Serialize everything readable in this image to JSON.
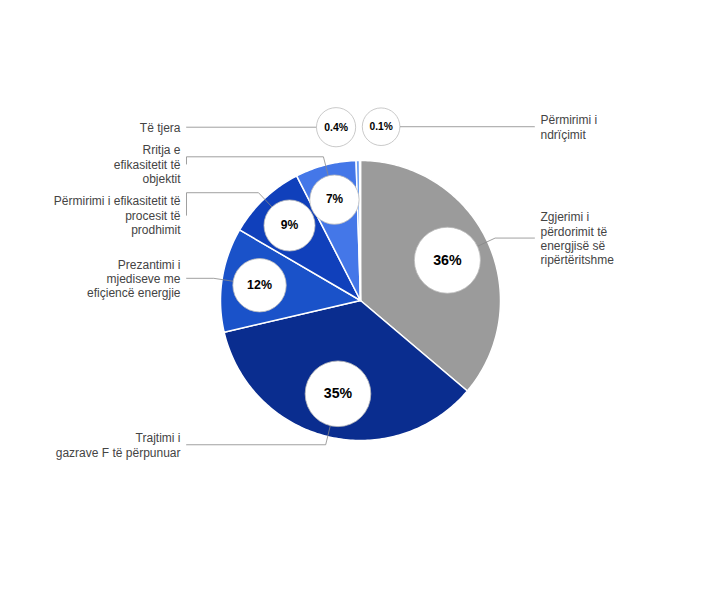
{
  "chart_data": {
    "type": "pie",
    "categories": [
      "Zgjerimi i\npërdorimit të\nenergjisë së\nripërtëritshme",
      "Trajtimi i\ngazrave F të përpunuar",
      "Prezantimi i\nmjediseve me\nefiçiencë energjie",
      "Përmirimi i efikasitetit të\nprocesit të\nprodhimit",
      "Rritja e\nefikasitetit të\nobjektit",
      "Të tjera",
      "Përmirimi i\nndrïçimit"
    ],
    "values": [
      36,
      35,
      12,
      9,
      7,
      0.4,
      0.1
    ],
    "value_labels": [
      "36%",
      "35%",
      "12%",
      "9%",
      "7%",
      "0.4%",
      "0.1%"
    ],
    "colors": [
      "#9b9b9b",
      "#0a2d8f",
      "#1a52c9",
      "#1040bb",
      "#4477e8",
      "#6fa0f0",
      "#adc5e8"
    ],
    "data_labels": true
  }
}
